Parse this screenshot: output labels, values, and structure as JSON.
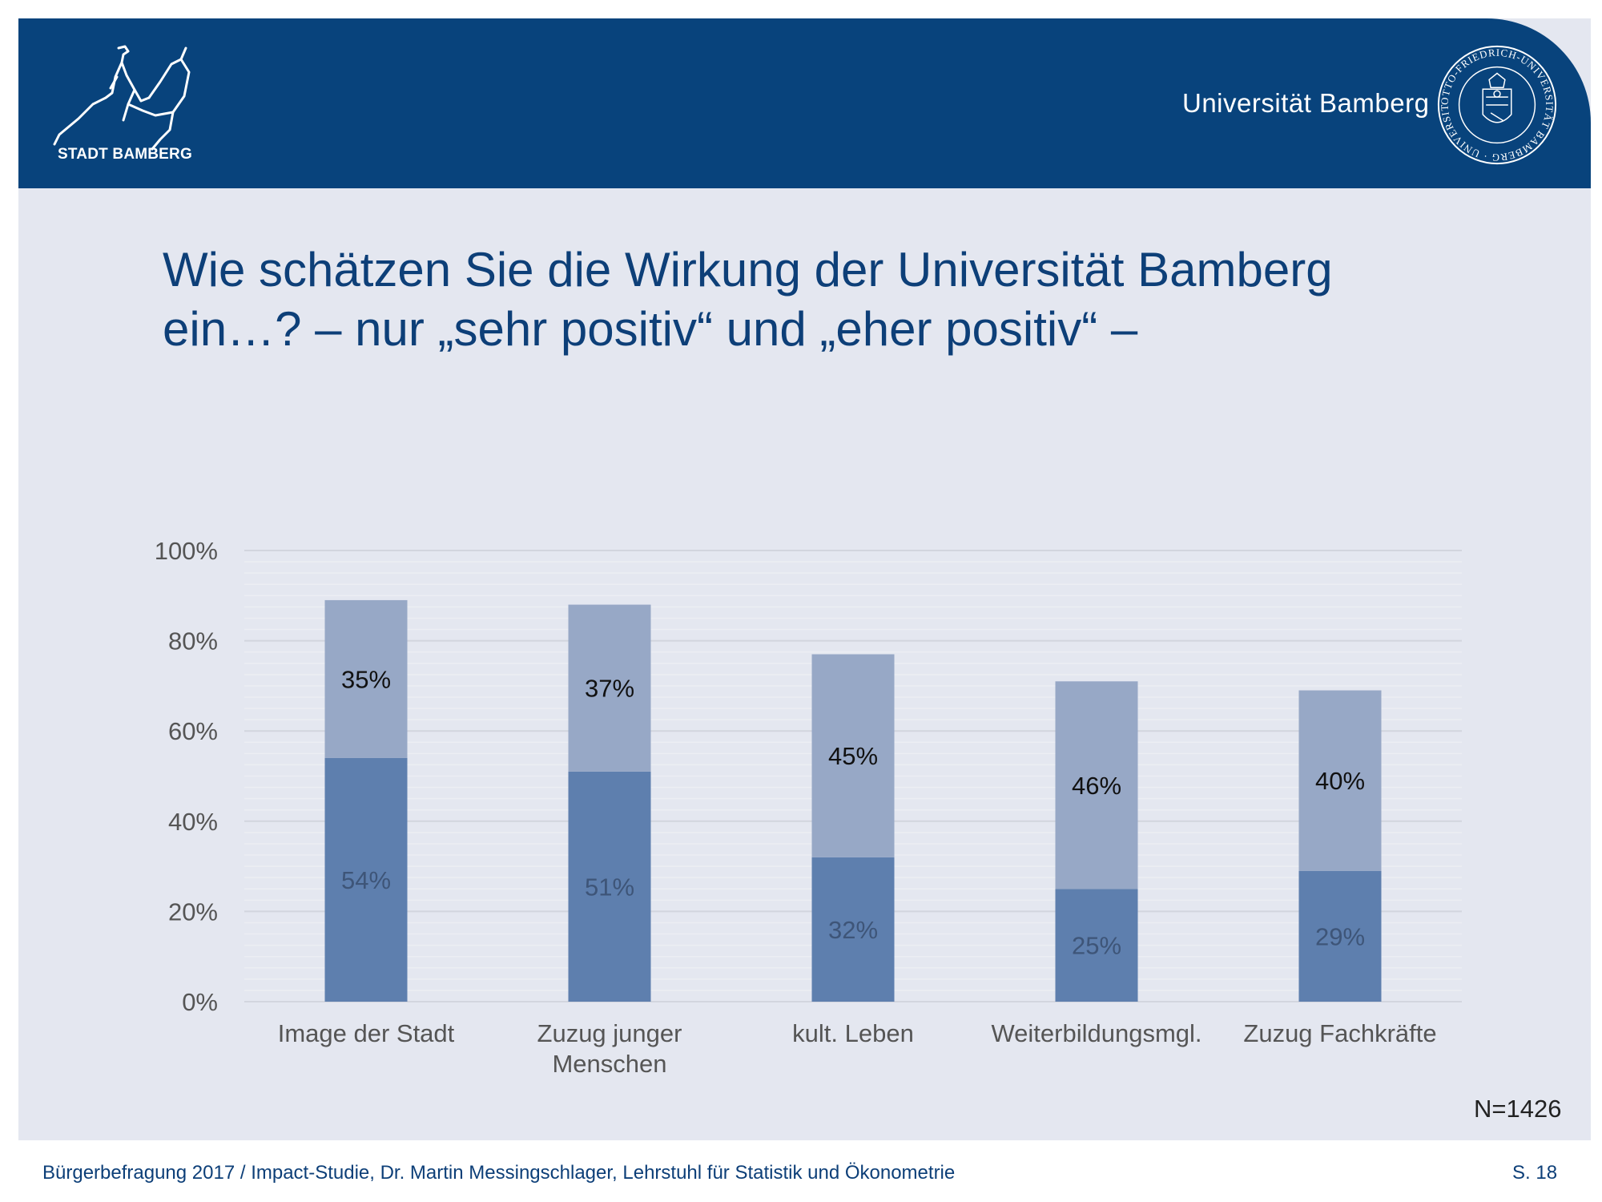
{
  "header": {
    "city_logo_text": "STADT BAMBERG",
    "university_name": "Universität Bamberg",
    "seal_text": "OTTO-FRIEDRICH-UNIVERSITÄT BAMBERG · UNIVERSITY OF BAMBERG"
  },
  "title": "Wie schätzen Sie die Wirkung der Universität Bamberg ein…? – nur „sehr positiv“ und „eher positiv“ –",
  "sample_note": "N=1426",
  "footer": {
    "text": "Bürgerbefragung 2017 / Impact-Studie, Dr. Martin Messingschlager, Lehrstuhl für Statistik und Ökonometrie",
    "page": "S. 18"
  },
  "colors": {
    "header": "#08437c",
    "panel": "#e4e7f0",
    "series_lower": "#5e7fae",
    "series_upper": "#97a8c6",
    "title_text": "#0d3f78"
  },
  "chart_data": {
    "type": "bar",
    "stacked": true,
    "categories": [
      [
        "Image der Stadt"
      ],
      [
        "Zuzug junger",
        "Menschen"
      ],
      [
        "kult. Leben"
      ],
      [
        "Weiterbildungsmgl."
      ],
      [
        "Zuzug Fachkräfte"
      ]
    ],
    "series": [
      {
        "values": [
          54,
          51,
          32,
          25,
          29
        ],
        "labels": [
          "54%",
          "51%",
          "32%",
          "25%",
          "29%"
        ]
      },
      {
        "values": [
          35,
          37,
          45,
          46,
          40
        ],
        "labels": [
          "35%",
          "37%",
          "45%",
          "46%",
          "40%"
        ]
      }
    ],
    "yticks": [
      "0%",
      "20%",
      "40%",
      "60%",
      "80%",
      "100%"
    ],
    "ylim": [
      0,
      100
    ],
    "grid": true,
    "legend": "none"
  }
}
